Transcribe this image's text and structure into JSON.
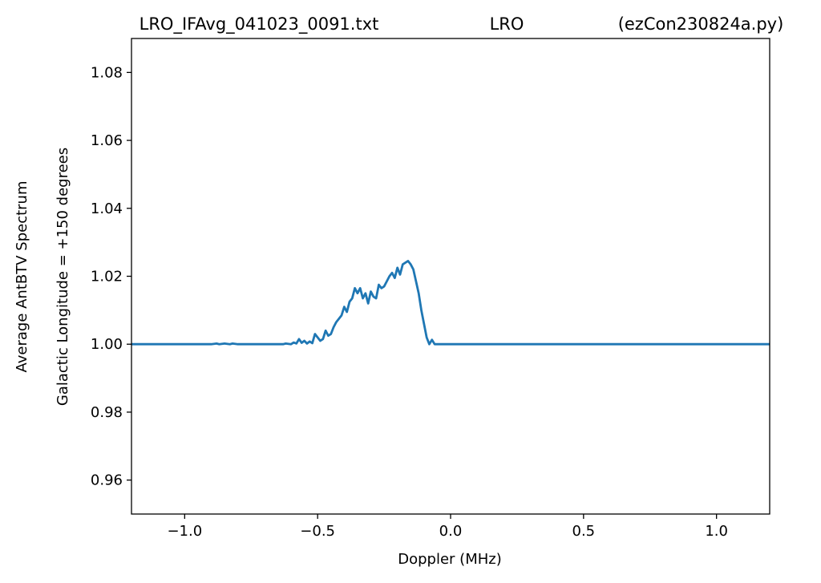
{
  "chart_data": {
    "type": "line",
    "title_left": "LRO_IFAvg_041023_0091.txt",
    "title_center": "LRO",
    "title_right": "(ezCon230824a.py)",
    "xlabel": "Doppler (MHz)",
    "ylabel_line1": "Average AntBTV Spectrum",
    "ylabel_line2": "Galactic Longitude = +150 degrees",
    "xlim": [
      -1.2,
      1.2
    ],
    "ylim": [
      0.95,
      1.09
    ],
    "xticks": [
      -1.0,
      -0.5,
      0.0,
      0.5,
      1.0
    ],
    "xtick_labels": [
      "−1.0",
      "−0.5",
      "0.0",
      "0.5",
      "1.0"
    ],
    "yticks": [
      0.96,
      0.98,
      1.0,
      1.02,
      1.04,
      1.06,
      1.08
    ],
    "ytick_labels": [
      "0.96",
      "0.98",
      "1.00",
      "1.02",
      "1.04",
      "1.06",
      "1.08"
    ],
    "grid": false,
    "line_color": "#1f77b4",
    "series": [
      {
        "x": [
          -1.2,
          -0.9,
          -0.88,
          -0.87,
          -0.85,
          -0.83,
          -0.82,
          -0.8,
          -0.79,
          -0.63,
          -0.62,
          -0.6,
          -0.59,
          -0.58,
          -0.57,
          -0.56,
          -0.55,
          -0.54,
          -0.53,
          -0.52,
          -0.51,
          -0.5,
          -0.49,
          -0.48,
          -0.47,
          -0.46,
          -0.45,
          -0.44,
          -0.43,
          -0.42,
          -0.41,
          -0.4,
          -0.39,
          -0.38,
          -0.37,
          -0.36,
          -0.35,
          -0.34,
          -0.33,
          -0.32,
          -0.31,
          -0.3,
          -0.29,
          -0.28,
          -0.27,
          -0.26,
          -0.25,
          -0.24,
          -0.23,
          -0.22,
          -0.21,
          -0.2,
          -0.19,
          -0.18,
          -0.17,
          -0.16,
          -0.15,
          -0.14,
          -0.13,
          -0.12,
          -0.11,
          -0.1,
          -0.09,
          -0.08,
          -0.07,
          -0.06,
          0.0,
          0.5,
          1.0,
          1.2
        ],
        "y": [
          1.0,
          1.0,
          1.0002,
          1.0,
          1.0002,
          1.0,
          1.0002,
          1.0,
          1.0,
          1.0,
          1.0002,
          1.0,
          1.0005,
          1.0002,
          1.0015,
          1.0004,
          1.001,
          1.0002,
          1.0008,
          1.0003,
          1.003,
          1.002,
          1.001,
          1.0015,
          1.004,
          1.0025,
          1.003,
          1.005,
          1.0065,
          1.0075,
          1.0085,
          1.011,
          1.0095,
          1.0125,
          1.0135,
          1.0165,
          1.015,
          1.0165,
          1.0135,
          1.015,
          1.012,
          1.0155,
          1.014,
          1.0135,
          1.0175,
          1.0165,
          1.017,
          1.0185,
          1.02,
          1.021,
          1.0195,
          1.0225,
          1.0205,
          1.0235,
          1.024,
          1.0245,
          1.0235,
          1.022,
          1.0185,
          1.015,
          1.01,
          1.006,
          1.002,
          1.0,
          1.0013,
          1.0,
          1.0,
          1.0,
          1.0,
          1.0
        ]
      }
    ]
  }
}
